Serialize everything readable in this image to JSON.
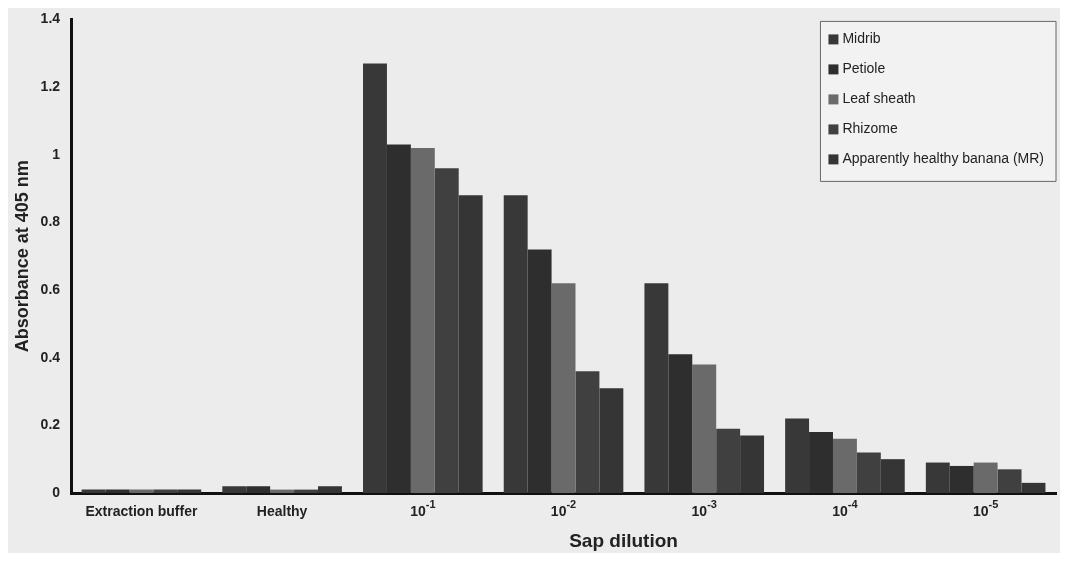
{
  "chart_data": {
    "type": "bar",
    "xlabel": "Sap dilution",
    "ylabel": "Absorbance at 405 nm",
    "categories": [
      "Extraction buffer",
      "Healthy",
      "10$^{-1}$",
      "10$^{-2}$",
      "10$^{-3}$",
      "10$^{-4}$",
      "10$^{-5}$"
    ],
    "series": [
      {
        "name": "Midrib",
        "color": "#383838",
        "values": [
          0.01,
          0.02,
          1.27,
          0.88,
          0.62,
          0.22,
          0.09
        ]
      },
      {
        "name": "Petiole",
        "color": "#2e2e2e",
        "values": [
          0.01,
          0.02,
          1.03,
          0.72,
          0.41,
          0.18,
          0.08
        ]
      },
      {
        "name": "Leaf sheath",
        "color": "#6a6a6a",
        "values": [
          0.01,
          0.01,
          1.02,
          0.62,
          0.38,
          0.16,
          0.09
        ]
      },
      {
        "name": "Rhizome",
        "color": "#404040",
        "values": [
          0.01,
          0.01,
          0.96,
          0.36,
          0.19,
          0.12,
          0.07
        ]
      },
      {
        "name": "Apparently healthy banana (MR)",
        "color": "#353535",
        "values": [
          0.01,
          0.02,
          0.88,
          0.31,
          0.17,
          0.1,
          0.03
        ]
      }
    ],
    "ylim": [
      0,
      1.4
    ],
    "yticks": [
      0,
      0.2,
      0.4,
      0.6,
      0.8,
      1,
      1.2,
      1.4
    ],
    "grid": false,
    "legend": "top right"
  }
}
